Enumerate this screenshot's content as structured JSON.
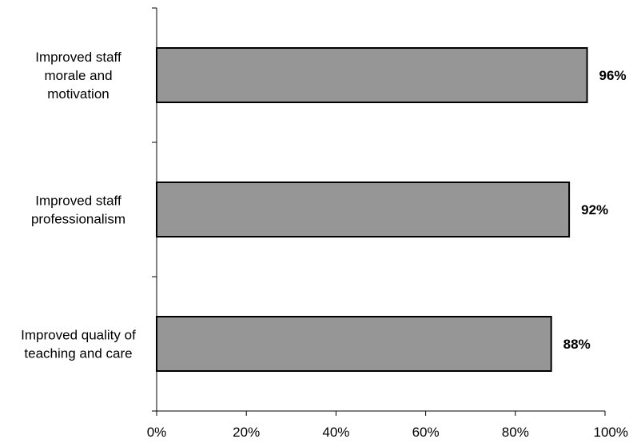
{
  "chart_data": {
    "type": "bar",
    "orientation": "horizontal",
    "categories": [
      [
        "Improved staff",
        "morale and",
        "motivation"
      ],
      [
        "Improved staff",
        "professionalism"
      ],
      [
        "Improved quality of",
        "teaching and care"
      ]
    ],
    "values": [
      96,
      92,
      88
    ],
    "data_labels": [
      "96%",
      "92%",
      "88%"
    ],
    "xlim": [
      0,
      100
    ],
    "xticks": [
      0,
      20,
      40,
      60,
      80,
      100
    ],
    "xtick_labels": [
      "0%",
      "20%",
      "40%",
      "60%",
      "80%",
      "100%"
    ],
    "grid": false,
    "legend": "none",
    "colors": {
      "bar_fill": "#969696",
      "bar_stroke": "#000000",
      "axis": "#000000"
    }
  }
}
